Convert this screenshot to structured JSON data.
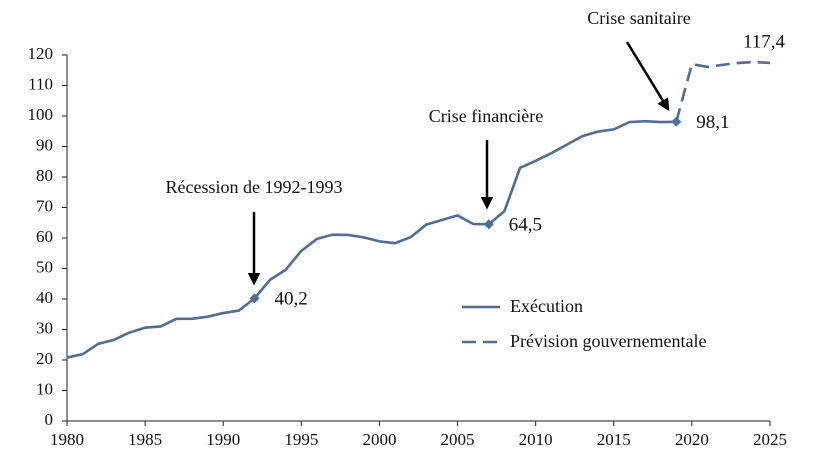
{
  "chart_data": {
    "type": "line",
    "x": [
      1980,
      1981,
      1982,
      1983,
      1984,
      1985,
      1986,
      1987,
      1988,
      1989,
      1990,
      1991,
      1992,
      1993,
      1994,
      1995,
      1996,
      1997,
      1998,
      1999,
      2000,
      2001,
      2002,
      2003,
      2004,
      2005,
      2006,
      2007,
      2008,
      2009,
      2010,
      2011,
      2012,
      2013,
      2014,
      2015,
      2016,
      2017,
      2018,
      2019,
      2020,
      2021,
      2022,
      2023,
      2024,
      2025
    ],
    "series": [
      {
        "name": "Exécution",
        "color": "#4f6d9b",
        "line_style": "solid",
        "marker": "diamond",
        "values": [
          20.8,
          21.9,
          25.3,
          26.6,
          29.0,
          30.6,
          31.0,
          33.5,
          33.5,
          34.2,
          35.4,
          36.2,
          40.2,
          46.3,
          49.6,
          55.8,
          59.7,
          61.1,
          61.0,
          60.2,
          58.9,
          58.3,
          60.3,
          64.4,
          65.9,
          67.4,
          64.6,
          64.5,
          68.8,
          83.0,
          85.3,
          87.8,
          90.6,
          93.4,
          94.9,
          95.6,
          98.0,
          98.3,
          98.0,
          98.1,
          null,
          null,
          null,
          null,
          null,
          null
        ],
        "value_labels": [
          null,
          null,
          null,
          null,
          null,
          null,
          null,
          null,
          null,
          null,
          null,
          null,
          "40,2",
          null,
          null,
          null,
          null,
          null,
          null,
          null,
          null,
          null,
          null,
          null,
          null,
          null,
          null,
          "64,5",
          null,
          null,
          null,
          null,
          null,
          null,
          null,
          null,
          null,
          null,
          null,
          "98,1",
          null,
          null,
          null,
          null,
          null,
          null
        ]
      },
      {
        "name": "Prévision gouvernementale",
        "color": "#4f6d9b",
        "line_style": "dashed",
        "values": [
          null,
          null,
          null,
          null,
          null,
          null,
          null,
          null,
          null,
          null,
          null,
          null,
          null,
          null,
          null,
          null,
          null,
          null,
          null,
          null,
          null,
          null,
          null,
          null,
          null,
          null,
          null,
          null,
          null,
          null,
          null,
          null,
          null,
          null,
          null,
          null,
          null,
          null,
          null,
          98.1,
          117.0,
          116.1,
          116.8,
          117.4,
          117.7,
          117.4
        ],
        "value_labels": [
          null,
          null,
          null,
          null,
          null,
          null,
          null,
          null,
          null,
          null,
          null,
          null,
          null,
          null,
          null,
          null,
          null,
          null,
          null,
          null,
          null,
          null,
          null,
          null,
          null,
          null,
          null,
          null,
          null,
          null,
          null,
          null,
          null,
          null,
          null,
          null,
          null,
          null,
          null,
          null,
          null,
          null,
          null,
          null,
          null,
          "117,4"
        ]
      }
    ],
    "annotations": [
      "Récession de 1992-1993",
      "Crise financière",
      "Crise sanitaire"
    ],
    "xlim": [
      1980,
      2025
    ],
    "xticks": [
      1980,
      1985,
      1990,
      1995,
      2000,
      2005,
      2010,
      2015,
      2020,
      2025
    ],
    "ylim": [
      0,
      120
    ],
    "yticks": [
      0,
      10,
      20,
      30,
      40,
      50,
      60,
      70,
      80,
      90,
      100,
      110,
      120
    ],
    "grid": false,
    "legend": "lower-right"
  }
}
